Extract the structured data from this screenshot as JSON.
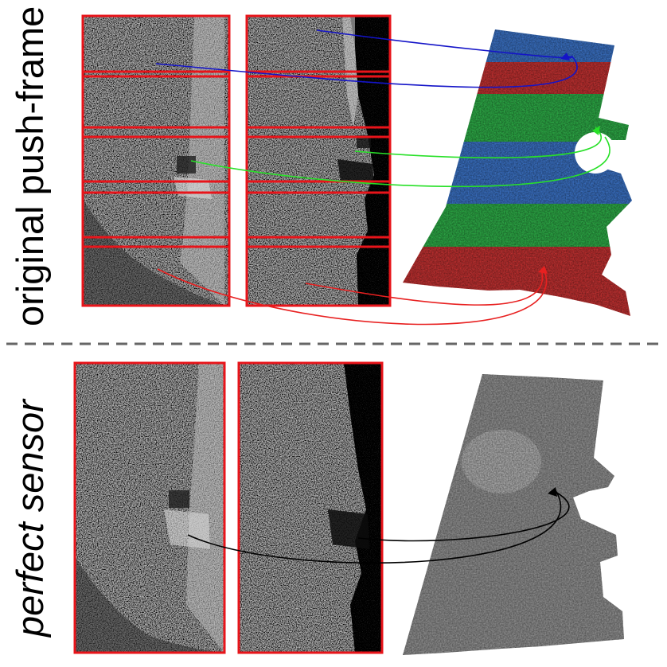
{
  "labels": {
    "top": "original push-frame",
    "bottom": "perfect sensor"
  },
  "colors": {
    "frame": "#e8141a",
    "red": "#d03232",
    "green": "#2eb84a",
    "blue": "#3c78d2",
    "blue_arrow": "#1414c8",
    "green_arrow": "#28e028",
    "red_arrow": "#e82020",
    "black_arrow": "#000000",
    "divider": "#666666"
  },
  "icons": {
    "imagery": "satellite-image-strip",
    "dsm": "point-cloud-surface"
  }
}
